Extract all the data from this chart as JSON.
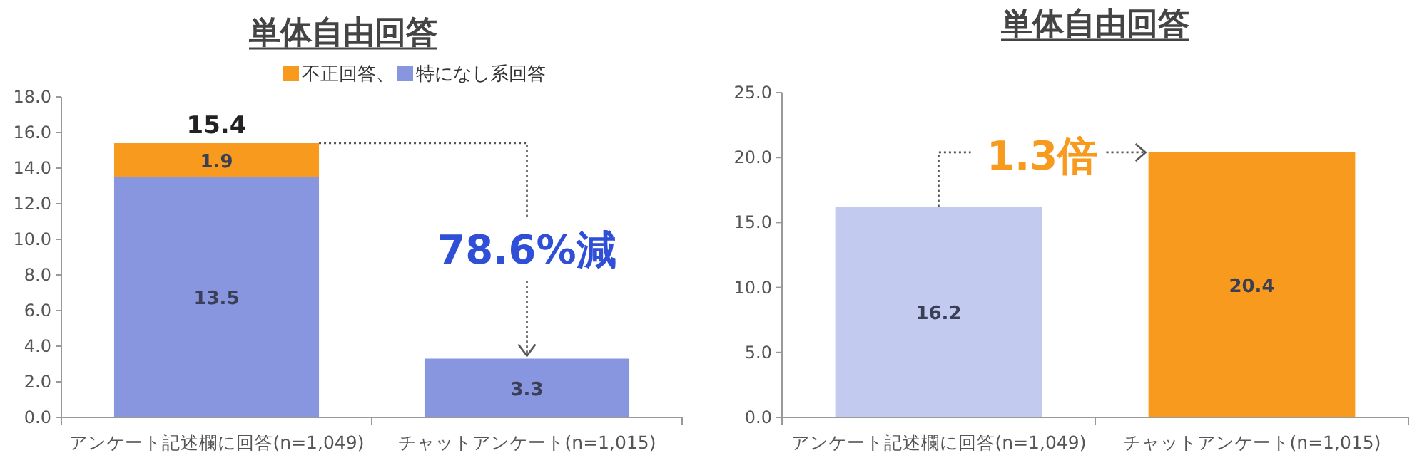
{
  "chart_data": [
    {
      "type": "bar",
      "title": "単体自由回答",
      "categories": [
        "アンケート記述欄に回答(n=1,049)",
        "チャットアンケート(n=1,015)"
      ],
      "stacked": true,
      "series": [
        {
          "name": "特になし系回答",
          "color": "#8896e0",
          "values": [
            13.5,
            3.3
          ]
        },
        {
          "name": "不正回答、",
          "color": "#f79a1e",
          "values": [
            1.9,
            null
          ]
        }
      ],
      "totals": [
        "15.4",
        null
      ],
      "data_labels": true,
      "legend": "top",
      "ylim": [
        0,
        18
      ],
      "yticks": [
        {
          "value": 0,
          "label": "0.0"
        },
        {
          "value": 2,
          "label": "2.0"
        },
        {
          "value": 4,
          "label": "4.0"
        },
        {
          "value": 6,
          "label": "6.0"
        },
        {
          "value": 8,
          "label": "8.0"
        },
        {
          "value": 10,
          "label": "10.0"
        },
        {
          "value": 12,
          "label": "12.0"
        },
        {
          "value": 14,
          "label": "14.0"
        },
        {
          "value": 16,
          "label": "16.0"
        },
        {
          "value": 18,
          "label": "18.0"
        }
      ],
      "annotations": [
        {
          "text": "78.6%減",
          "y": 3.3
        }
      ]
    },
    {
      "type": "bar",
      "title": "単体自由回答",
      "categories": [
        "アンケート記述欄に回答(n=1,049)",
        "チャットアンケート(n=1,015)"
      ],
      "values": [
        16.2,
        20.4
      ],
      "colors": [
        "#c3caf0",
        "#f79a1e"
      ],
      "data_labels": true,
      "ylim": [
        0,
        25
      ],
      "yticks": [
        {
          "value": 0,
          "label": "0.0"
        },
        {
          "value": 5,
          "label": "5.0"
        },
        {
          "value": 10,
          "label": "10.0"
        },
        {
          "value": 15,
          "label": "15.0"
        },
        {
          "value": 20,
          "label": "20.0"
        },
        {
          "value": 25,
          "label": "25.0"
        }
      ],
      "annotations": [
        "1.3倍"
      ]
    }
  ]
}
